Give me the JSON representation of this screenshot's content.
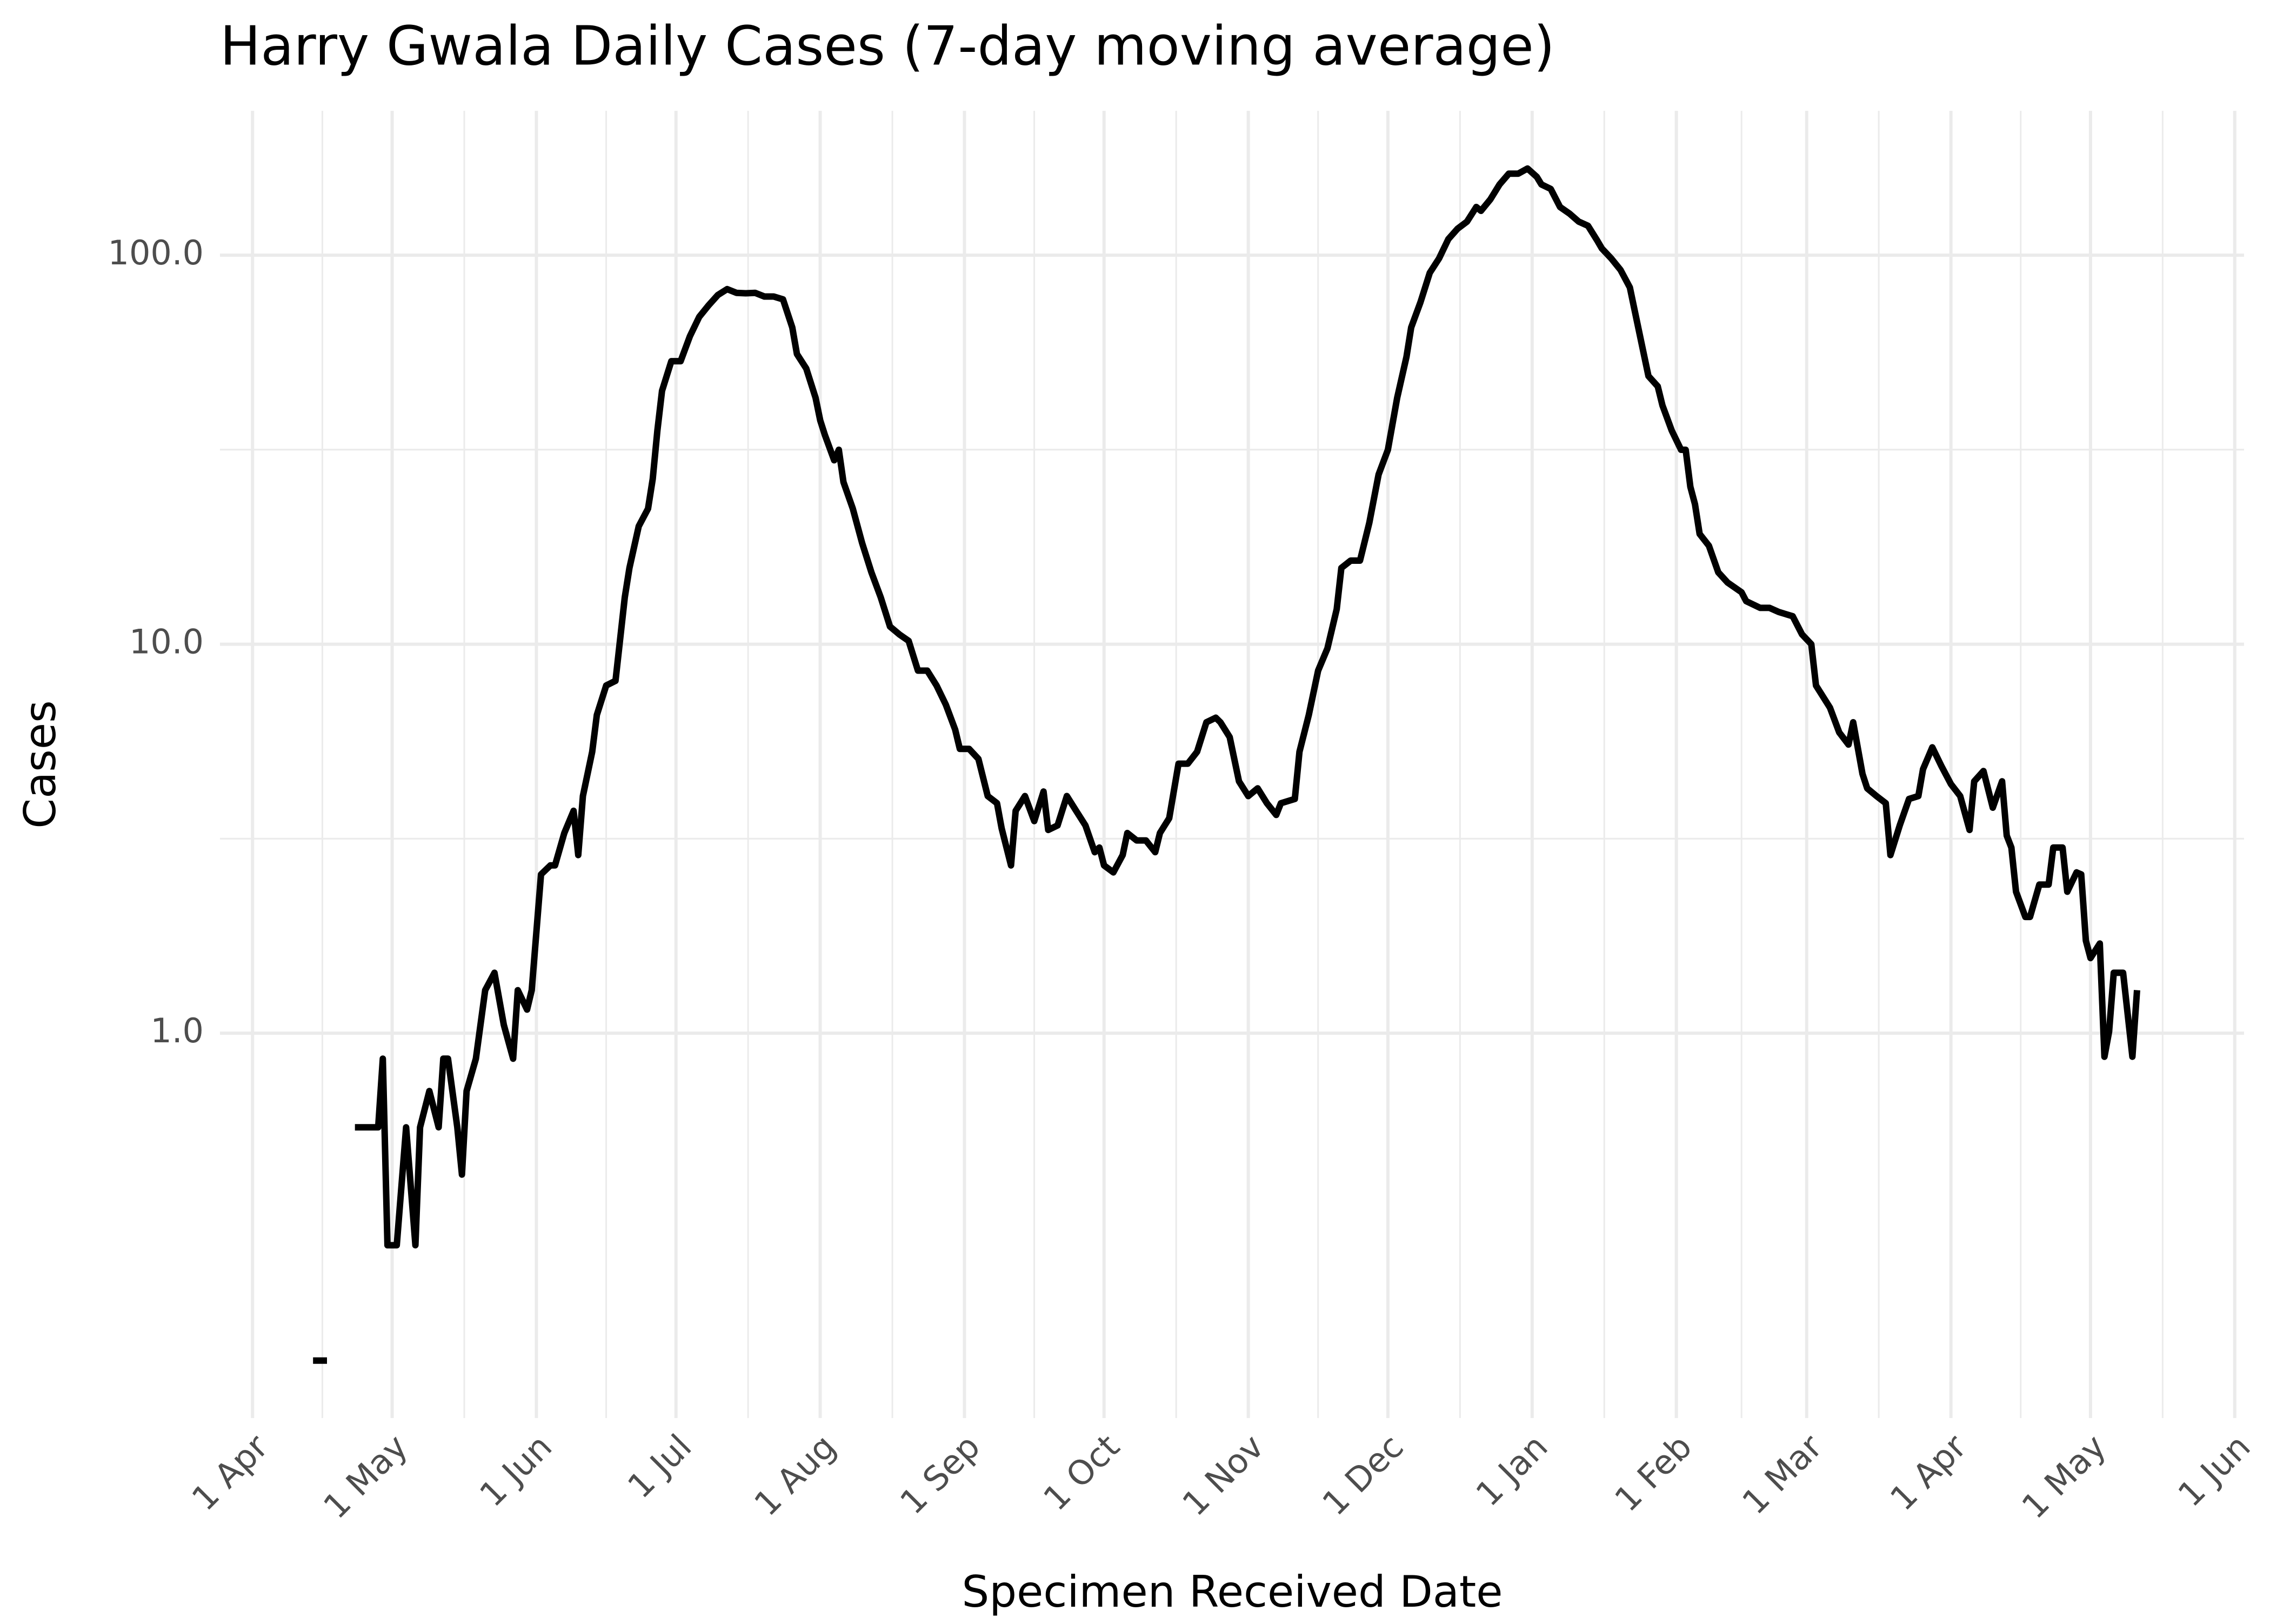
{
  "chart_data": {
    "type": "line",
    "title": "Harry Gwala Daily Cases (7-day moving average)",
    "x_label": "Specimen Received Date",
    "y_label": "Cases",
    "log_y": true,
    "grid": true,
    "color": "#000000",
    "xlim": [
      -7,
      428
    ],
    "xticks": [
      {
        "value": 0,
        "label": "1 Apr"
      },
      {
        "value": 30,
        "label": "1 May"
      },
      {
        "value": 61,
        "label": "1 Jun"
      },
      {
        "value": 91,
        "label": "1 Jul"
      },
      {
        "value": 122,
        "label": "1 Aug"
      },
      {
        "value": 153,
        "label": "1 Sep"
      },
      {
        "value": 183,
        "label": "1 Oct"
      },
      {
        "value": 214,
        "label": "1 Nov"
      },
      {
        "value": 244,
        "label": "1 Dec"
      },
      {
        "value": 275,
        "label": "1 Jan"
      },
      {
        "value": 306,
        "label": "1 Feb"
      },
      {
        "value": 334,
        "label": "1 Mar"
      },
      {
        "value": 365,
        "label": "1 Apr"
      },
      {
        "value": 395,
        "label": "1 May"
      },
      {
        "value": 426,
        "label": "1 Jun"
      }
    ],
    "ylim": [
      0.1025,
      235
    ],
    "yticks": [
      {
        "value": 1,
        "label": "1.0"
      },
      {
        "value": 10,
        "label": "10.0"
      },
      {
        "value": 100,
        "label": "100.0"
      }
    ],
    "x": [
      13,
      16,
      18,
      22,
      27,
      28,
      29,
      31,
      33,
      35,
      36,
      38,
      40,
      41,
      42,
      44,
      45,
      46,
      48,
      50,
      52,
      54,
      56,
      57,
      59,
      60,
      62,
      64,
      65,
      67,
      69,
      70,
      71,
      73,
      74,
      76,
      78,
      80,
      81,
      83,
      85,
      86,
      87,
      88,
      90,
      92,
      94,
      96,
      98,
      100,
      102,
      104,
      106,
      108,
      110,
      112,
      114,
      116,
      117,
      119,
      121,
      122,
      123,
      125,
      126,
      127,
      129,
      131,
      133,
      135,
      137,
      139,
      141,
      143,
      145,
      147,
      149,
      151,
      152,
      154,
      156,
      158,
      160,
      161,
      163,
      164,
      166,
      168,
      170,
      171,
      173,
      175,
      177,
      179,
      181,
      182,
      183,
      185,
      187,
      188,
      190,
      192,
      194,
      195,
      197,
      199,
      201,
      203,
      205,
      207,
      208,
      210,
      212,
      214,
      216,
      218,
      220,
      221,
      224,
      225,
      227,
      229,
      231,
      233,
      234,
      236,
      238,
      240,
      242,
      244,
      246,
      248,
      249,
      251,
      253,
      255,
      257,
      259,
      261,
      263,
      264,
      266,
      268,
      270,
      272,
      274,
      276,
      277,
      279,
      281,
      283,
      285,
      287,
      289,
      290,
      292,
      294,
      296,
      297,
      299,
      300,
      302,
      303,
      305,
      307,
      308,
      309,
      310,
      311,
      313,
      315,
      317,
      320,
      321,
      324,
      326,
      328,
      331,
      333,
      335,
      336,
      339,
      341,
      343,
      344,
      346,
      347,
      349,
      351,
      352,
      354,
      356,
      358,
      359,
      361,
      363,
      365,
      367,
      369,
      370,
      372,
      374,
      376,
      377,
      378,
      379,
      381,
      382,
      384,
      386,
      387,
      389,
      390,
      392,
      393,
      394,
      395,
      397,
      398,
      399,
      400,
      402,
      404,
      405
    ],
    "values": [
      0.144,
      0.144,
      null,
      0.573,
      0.573,
      0.86,
      0.285,
      0.285,
      0.573,
      0.285,
      0.573,
      0.71,
      0.573,
      0.86,
      0.86,
      0.573,
      0.433,
      0.71,
      0.86,
      1.29,
      1.43,
      1.05,
      0.86,
      1.29,
      1.15,
      1.29,
      2.56,
      2.7,
      2.7,
      3.27,
      3.73,
      2.87,
      4.07,
      5.29,
      6.58,
      7.83,
      8.05,
      13.2,
      15.7,
      20.1,
      22.3,
      26.6,
      35.4,
      44.8,
      53.4,
      53.4,
      61.9,
      69.4,
      74.3,
      79,
      81.8,
      80,
      79.8,
      80,
      78.3,
      78.3,
      77,
      65.2,
      55.7,
      51.1,
      43,
      37.6,
      34.5,
      29.7,
      31.6,
      26.1,
      22.3,
      18.2,
      15.3,
      13.2,
      11.1,
      10.6,
      10.2,
      8.55,
      8.55,
      7.83,
      6.99,
      6.03,
      5.38,
      5.38,
      5.07,
      4.07,
      3.9,
      3.36,
      2.7,
      3.73,
      4.07,
      3.51,
      4.18,
      3.33,
      3.42,
      4.07,
      3.73,
      3.42,
      2.92,
      3.0,
      2.7,
      2.59,
      2.87,
      3.27,
      3.13,
      3.13,
      2.92,
      3.27,
      3.57,
      4.93,
      4.93,
      5.29,
      6.3,
      6.47,
      6.3,
      5.77,
      4.44,
      4.07,
      4.26,
      3.9,
      3.64,
      3.9,
      4.0,
      5.29,
      6.58,
      8.55,
      9.75,
      12.3,
      15.7,
      16.4,
      16.4,
      20.5,
      27.3,
      31.6,
      43,
      54.8,
      65.2,
      75.7,
      90.1,
      98.1,
      110,
      117,
      122,
      133,
      130,
      139,
      152,
      162,
      162,
      167,
      159,
      152,
      148,
      133,
      128,
      122,
      119,
      109,
      104,
      98.1,
      91.6,
      82.6,
      72.4,
      55.7,
      48.9,
      46,
      41.1,
      35.4,
      31.6,
      31.6,
      25.4,
      22.9,
      19.2,
      17.9,
      15.3,
      14.4,
      13.6,
      12.9,
      12.4,
      12.4,
      12.1,
      11.8,
      10.6,
      10,
      7.83,
      6.87,
      5.93,
      5.52,
      6.3,
      4.64,
      4.26,
      4.07,
      3.9,
      2.87,
      3.42,
      4.0,
      4.07,
      4.77,
      5.43,
      4.85,
      4.37,
      4.07,
      3.33,
      4.44,
      4.72,
      3.8,
      4.44,
      3.22,
      3.0,
      2.31,
      1.99,
      1.99,
      2.41,
      2.41,
      3.0,
      3.0,
      2.31,
      2.59,
      2.56,
      1.73,
      1.56,
      1.7,
      0.87,
      1.01,
      1.43,
      1.43,
      0.87,
      1.29
    ]
  }
}
